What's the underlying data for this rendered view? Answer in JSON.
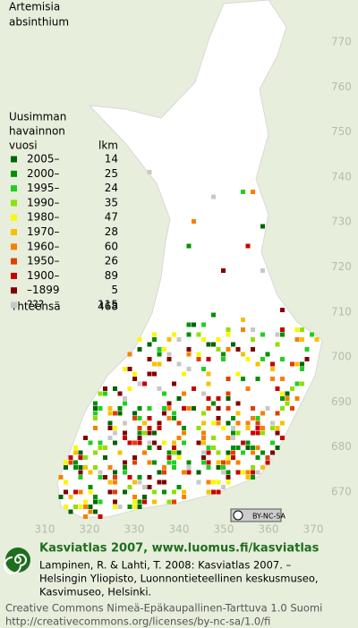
{
  "title": [
    "Artemisia",
    "absinthium"
  ],
  "legend": {
    "heading": [
      "Uusimman",
      "havainnon",
      "vuosi"
    ],
    "count_heading": "lkm",
    "items": [
      {
        "label": "2005–",
        "count": 14,
        "color": "#006400"
      },
      {
        "label": "2000–",
        "count": 25,
        "color": "#009000"
      },
      {
        "label": "1995–",
        "count": 24,
        "color": "#20d020"
      },
      {
        "label": "1990–",
        "count": 35,
        "color": "#90e000"
      },
      {
        "label": "1980–",
        "count": 47,
        "color": "#f8f800"
      },
      {
        "label": "1970–",
        "count": 28,
        "color": "#f8c000"
      },
      {
        "label": "1960–",
        "count": 60,
        "color": "#f88000"
      },
      {
        "label": "1950–",
        "count": 26,
        "color": "#e04000"
      },
      {
        "label": "1900–",
        "count": 89,
        "color": "#c80000"
      },
      {
        "label": "–1899",
        "count": 5,
        "color": "#800000"
      },
      {
        "label": "???",
        "count": 115,
        "color": "#c8c8c8"
      }
    ],
    "total": {
      "label": "Yhteensä",
      "count": 468
    }
  },
  "axes": {
    "y_labels": [
      770,
      760,
      750,
      740,
      730,
      720,
      710,
      700,
      690,
      680,
      670
    ],
    "x_labels": [
      310,
      320,
      330,
      340,
      350,
      360,
      370
    ]
  },
  "badge": "BY-NC-SA",
  "footer": {
    "title": "Kasviatlas 2007, www.luomus.fi/kasviatlas",
    "citation": [
      "Lampinen, R. & Lahti, T. 2008: Kasviatlas 2007. –",
      "Helsingin Yliopisto, Luonnontieteellinen keskusmuseo,",
      "Kasvimuseo, Helsinki."
    ],
    "license": [
      "Creative Commons Nimeä-Epäkaupallinen-Tarttuva 1.0 Suomi",
      "http://creativecommons.org/licenses/by-nc-sa/1.0/fi"
    ]
  }
}
